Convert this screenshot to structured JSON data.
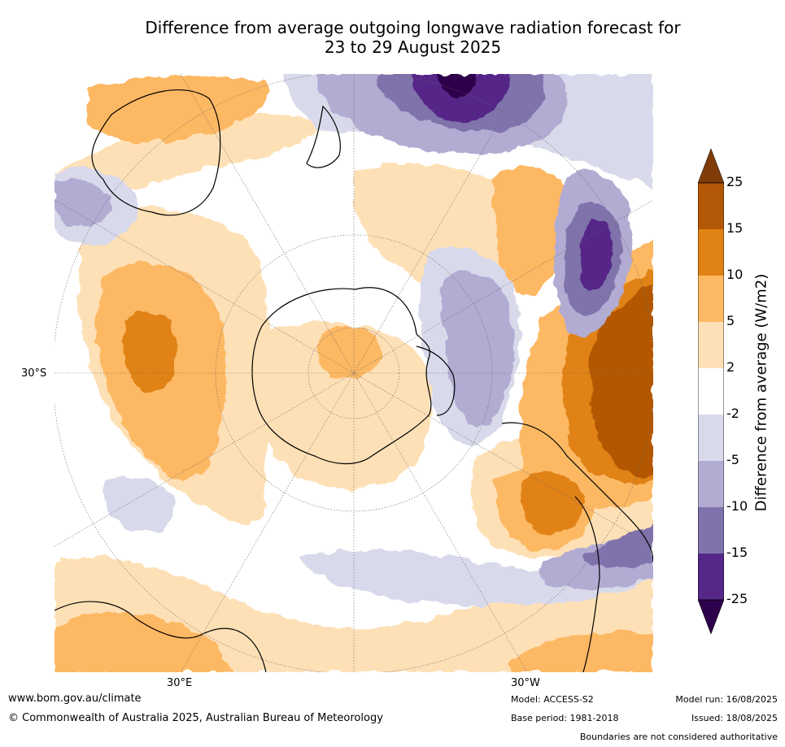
{
  "title_line1": "Difference from average outgoing longwave radiation forecast for",
  "title_line2": "23 to 29 August 2025",
  "map": {
    "lat_label": "30°S",
    "lon_labels": [
      "30°E",
      "30°W"
    ]
  },
  "colorbar": {
    "title": "Difference from average (W/m2)",
    "ticks": [
      "25",
      "15",
      "10",
      "5",
      "2",
      "-2",
      "-5",
      "-10",
      "-15",
      "-25"
    ],
    "colors": {
      "extend_high": "#7f3b08",
      "c15_25": "#b35806",
      "c10_15": "#e08214",
      "c5_10": "#fdb863",
      "c2_5": "#fee0b6",
      "neutral": "#ffffff",
      "cm2_m5": "#d8daeb",
      "cm5_m10": "#b2abd2",
      "cm10_m15": "#8073ac",
      "cm15_m25": "#542788",
      "extend_low": "#2d004b"
    }
  },
  "footer": {
    "website": "www.bom.gov.au/climate",
    "copyright": "© Commonwealth of Australia 2025, Australian Bureau of Meteorology",
    "model": "Model: ACCESS-S2",
    "base_period": "Base period: 1981-2018",
    "model_run": "Model run: 16/08/2025",
    "issued": "Issued: 18/08/2025",
    "disclaimer": "Boundaries are not considered authoritative"
  }
}
